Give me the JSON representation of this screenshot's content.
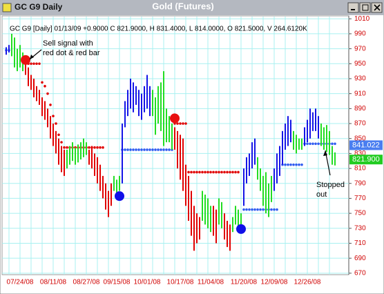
{
  "chart_data": {
    "type": "ohlc",
    "window_title": "GC G9 Daily",
    "title": "Gold (Futures)",
    "header": "GC G9 [Daily] 01/13/09 +0.9000 C 821.9000, H 831.4000, L 814.0000, O 821.5000, V 264.6120K",
    "categories": [
      null,
      null,
      null,
      null,
      null,
      "07/24/08",
      null,
      null,
      null,
      null,
      null,
      null,
      null,
      null,
      null,
      null,
      null,
      "08/11/08",
      null,
      null,
      null,
      null,
      null,
      null,
      null,
      null,
      null,
      null,
      null,
      "08/27/08",
      null,
      null,
      null,
      null,
      null,
      null,
      null,
      null,
      null,
      null,
      "09/15/08",
      null,
      null,
      null,
      null,
      null,
      null,
      null,
      null,
      null,
      null,
      "10/01/08",
      null,
      null,
      null,
      null,
      null,
      null,
      null,
      null,
      null,
      null,
      null,
      "10/17/08",
      null,
      null,
      null,
      null,
      null,
      null,
      null,
      null,
      null,
      null,
      "11/04/08",
      null,
      null,
      null,
      null,
      null,
      null,
      null,
      null,
      null,
      null,
      null,
      "11/20/08",
      null,
      null,
      null,
      null,
      null,
      null,
      null,
      null,
      null,
      null,
      "12/09/08",
      null,
      null,
      null,
      null,
      null,
      null,
      null,
      null,
      null,
      null,
      null,
      "12/26/08",
      null,
      null,
      null,
      null,
      null,
      null,
      null,
      null,
      null,
      null
    ],
    "high": [
      972,
      975,
      990,
      985,
      970,
      975,
      965,
      955,
      945,
      935,
      930,
      920,
      915,
      905,
      900,
      890,
      880,
      870,
      860,
      850,
      840,
      835,
      835,
      840,
      845,
      838,
      842,
      845,
      850,
      845,
      835,
      840,
      830,
      825,
      815,
      800,
      790,
      780,
      790,
      800,
      795,
      800,
      870,
      900,
      915,
      930,
      925,
      920,
      915,
      910,
      920,
      935,
      920,
      915,
      905,
      920,
      925,
      940,
      890,
      880,
      870,
      865,
      860,
      855,
      850,
      815,
      800,
      780,
      760,
      750,
      745,
      780,
      775,
      770,
      760,
      760,
      755,
      770,
      765,
      750,
      740,
      735,
      745,
      760,
      755,
      750,
      810,
      825,
      830,
      845,
      850,
      825,
      810,
      800,
      805,
      790,
      800,
      810,
      830,
      840,
      860,
      870,
      880,
      875,
      860,
      855,
      850,
      850,
      865,
      875,
      890,
      885,
      890,
      880,
      870,
      865,
      868,
      860,
      840,
      831.4
    ],
    "low": [
      962,
      965,
      960,
      945,
      940,
      945,
      940,
      935,
      920,
      915,
      905,
      900,
      895,
      880,
      875,
      865,
      850,
      840,
      830,
      815,
      805,
      800,
      810,
      815,
      820,
      815,
      818,
      822,
      825,
      828,
      815,
      810,
      800,
      790,
      780,
      770,
      755,
      745,
      760,
      780,
      775,
      780,
      790,
      865,
      880,
      890,
      885,
      895,
      880,
      875,
      885,
      890,
      880,
      880,
      855,
      870,
      860,
      840,
      845,
      845,
      835,
      835,
      810,
      795,
      780,
      760,
      740,
      720,
      700,
      710,
      715,
      740,
      735,
      730,
      725,
      720,
      710,
      735,
      730,
      715,
      705,
      700,
      725,
      735,
      730,
      735,
      760,
      790,
      800,
      810,
      815,
      795,
      780,
      760,
      750,
      745,
      765,
      780,
      790,
      800,
      815,
      835,
      840,
      845,
      835,
      830,
      835,
      835,
      840,
      845,
      850,
      860,
      860,
      850,
      840,
      835,
      832,
      828,
      815,
      814
    ],
    "palette": {
      "r": "#e00000",
      "g": "#22dd22",
      "b": "#1414e6"
    },
    "bar_colors": [
      "b",
      "b",
      "g",
      "g",
      "g",
      "g",
      "g",
      "r",
      "r",
      "r",
      "r",
      "r",
      "r",
      "r",
      "r",
      "r",
      "r",
      "r",
      "r",
      "r",
      "r",
      "r",
      "g",
      "g",
      "g",
      "g",
      "g",
      "g",
      "g",
      "g",
      "r",
      "r",
      "r",
      "r",
      "r",
      "r",
      "r",
      "r",
      "r",
      "g",
      "g",
      "g",
      "b",
      "b",
      "b",
      "b",
      "b",
      "b",
      "b",
      "b",
      "b",
      "b",
      "b",
      "g",
      "g",
      "g",
      "g",
      "g",
      "g",
      "g",
      "g",
      "r",
      "r",
      "r",
      "r",
      "r",
      "r",
      "r",
      "r",
      "r",
      "r",
      "g",
      "g",
      "g",
      "g",
      "r",
      "r",
      "g",
      "g",
      "r",
      "r",
      "r",
      "g",
      "g",
      "g",
      "g",
      "b",
      "b",
      "b",
      "b",
      "b",
      "g",
      "g",
      "g",
      "g",
      "g",
      "g",
      "b",
      "b",
      "b",
      "b",
      "b",
      "b",
      "b",
      "g",
      "g",
      "g",
      "g",
      "b",
      "b",
      "b",
      "b",
      "b",
      "b",
      "g",
      "g",
      "g",
      "g",
      "g",
      "g"
    ],
    "stops": [
      {
        "color": "#e00000",
        "values": [
          null,
          null,
          null,
          null,
          null,
          null,
          null,
          null,
          950,
          950,
          950,
          950,
          950,
          925,
          920,
          910,
          895,
          880,
          870,
          855,
          845,
          838,
          838,
          838,
          838,
          838,
          838,
          838,
          838,
          838,
          838,
          838,
          838,
          838,
          838,
          838,
          null,
          null,
          null,
          null,
          null,
          null,
          null,
          null,
          null,
          null,
          null,
          null,
          null,
          null,
          null,
          null,
          null,
          null,
          null,
          null,
          null,
          null,
          null,
          null,
          null,
          870,
          870,
          870,
          870,
          870,
          805,
          805,
          805,
          805,
          805,
          805,
          805,
          805,
          805,
          805,
          805,
          805,
          805,
          805,
          805,
          805,
          805,
          805,
          805,
          null,
          null,
          null,
          null,
          null,
          null,
          null,
          null,
          null,
          null,
          null,
          null,
          null,
          null,
          null,
          null,
          null,
          null,
          null,
          null,
          null,
          null,
          null,
          null,
          null,
          null,
          null,
          null,
          null,
          null,
          null,
          null,
          null,
          null,
          null,
          null,
          null,
          null,
          null,
          null,
          null
        ]
      },
      {
        "color": "#2f5cf0",
        "values": [
          968,
          968,
          null,
          null,
          null,
          null,
          null,
          null,
          null,
          null,
          null,
          null,
          null,
          null,
          null,
          null,
          null,
          null,
          null,
          null,
          null,
          null,
          null,
          null,
          null,
          null,
          null,
          null,
          null,
          null,
          null,
          null,
          null,
          null,
          null,
          null,
          null,
          null,
          null,
          null,
          null,
          null,
          835,
          835,
          835,
          835,
          835,
          835,
          835,
          835,
          835,
          835,
          835,
          835,
          835,
          835,
          835,
          835,
          835,
          835,
          835,
          null,
          null,
          null,
          null,
          null,
          null,
          null,
          null,
          null,
          null,
          null,
          null,
          null,
          null,
          null,
          null,
          null,
          null,
          null,
          null,
          null,
          null,
          null,
          null,
          null,
          755,
          755,
          755,
          755,
          755,
          755,
          755,
          755,
          755,
          755,
          755,
          755,
          755,
          null,
          815,
          815,
          815,
          815,
          815,
          815,
          815,
          815,
          843,
          843,
          843,
          843,
          843,
          843,
          843,
          843,
          843,
          843,
          843,
          843
        ]
      }
    ],
    "signals": [
      {
        "x": 7,
        "y": 955,
        "color": "#e81010"
      },
      {
        "x": 41,
        "y": 773,
        "color": "#1010e8"
      },
      {
        "x": 61,
        "y": 877,
        "color": "#e81010"
      },
      {
        "x": 85,
        "y": 729,
        "color": "#1010e8"
      }
    ],
    "last_values": [
      {
        "value": 841.022,
        "label": "841.022",
        "color": "#4a7ef0"
      },
      {
        "value": 821.9,
        "label": "821.900",
        "color": "#22cc22"
      }
    ],
    "annotations": [
      {
        "lines": [
          "Sell signal with",
          "red dot & red bar"
        ]
      },
      {
        "lines": [
          "Stopped",
          "out"
        ]
      }
    ],
    "ylim": [
      668,
      1013
    ],
    "yticks": [
      670,
      690,
      710,
      730,
      750,
      770,
      790,
      810,
      830,
      850,
      870,
      890,
      910,
      930,
      950,
      970,
      990,
      1010
    ],
    "grid": true
  }
}
